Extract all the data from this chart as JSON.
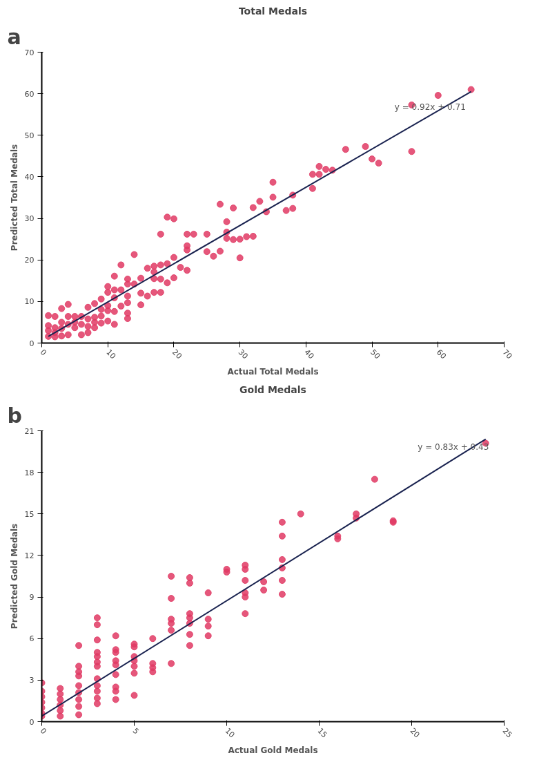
{
  "chart_data": [
    {
      "type": "scatter",
      "title": "Total Medals",
      "xlabel": "Actual Total Medals",
      "ylabel": "Predicted Total Medals",
      "xlim": [
        0,
        70
      ],
      "ylim": [
        0,
        70
      ],
      "xticks": [
        0,
        10,
        20,
        30,
        40,
        50,
        60,
        70
      ],
      "yticks": [
        0,
        10,
        20,
        30,
        40,
        50,
        60,
        70
      ],
      "grid": false,
      "annotations": [
        "a",
        "y = 0.92x + 0.71"
      ],
      "series": [
        {
          "marker": "circle",
          "color": "#e03a64",
          "x": [
            65,
            60,
            56,
            56,
            49,
            46,
            50,
            51,
            44,
            43,
            42,
            42,
            41,
            41,
            38,
            38,
            37,
            35,
            35,
            34,
            33,
            32,
            32,
            31,
            30,
            30,
            29,
            27,
            28,
            28,
            28,
            29,
            25,
            25,
            26,
            27,
            22,
            23,
            22,
            22,
            22,
            21,
            20,
            20,
            20,
            19,
            18,
            19,
            19,
            18,
            18,
            18,
            17,
            17,
            17,
            17,
            16,
            16,
            15,
            15,
            15,
            14,
            14,
            13,
            13,
            13,
            13,
            13,
            13,
            12,
            12,
            12,
            11,
            11,
            11,
            11,
            11,
            10,
            10,
            10,
            10,
            9,
            9,
            9,
            8,
            8,
            8,
            7,
            7,
            7,
            6,
            6,
            5,
            5,
            4,
            4,
            4,
            3,
            3,
            3,
            2,
            2,
            2,
            1,
            1,
            1,
            1,
            2,
            3,
            4,
            5,
            6,
            7,
            8,
            9,
            10
          ],
          "values": [
            61,
            59.6,
            57.3,
            46.1,
            47.3,
            46.6,
            44.3,
            43.3,
            41.6,
            41.8,
            42.5,
            40.6,
            40.6,
            37.2,
            35.6,
            32.4,
            31.9,
            38.7,
            35.1,
            31.6,
            34.1,
            32.6,
            25.7,
            25.6,
            25,
            20.5,
            32.5,
            33.4,
            29.2,
            26.7,
            25.2,
            24.9,
            26.2,
            22,
            20.9,
            22.1,
            26.2,
            26.2,
            23.4,
            22.4,
            17.5,
            18.2,
            20.6,
            15.7,
            29.9,
            30.3,
            26.2,
            19.1,
            14.5,
            18.8,
            15.4,
            12.2,
            18.5,
            17.1,
            15.5,
            12.2,
            18,
            11.3,
            15.6,
            12,
            9.2,
            21.3,
            14.2,
            15.4,
            14.2,
            11.3,
            9.7,
            7.2,
            5.9,
            18.8,
            12.8,
            8.9,
            16.1,
            12.8,
            10.9,
            7.6,
            4.5,
            13.6,
            12.2,
            7.8,
            5.3,
            10.6,
            8.1,
            4.8,
            9.5,
            6.2,
            3.7,
            8.6,
            5.8,
            2.5,
            2,
            6.4,
            6.4,
            3.7,
            9.3,
            6.4,
            2,
            8.3,
            5,
            1.7,
            6.4,
            3.7,
            1.5,
            6.6,
            4.2,
            1.6,
            3,
            2.5,
            3.5,
            4.5,
            5,
            4.5,
            4,
            5,
            6.5,
            9
          ]
        },
        {
          "type": "line",
          "color": "#1a2350",
          "x": [
            1,
            65
          ],
          "values": [
            1.6,
            60.5
          ]
        }
      ]
    },
    {
      "type": "scatter",
      "title": "Gold Medals",
      "xlabel": "Actual Gold Medals",
      "ylabel": "Predicted Gold Medals",
      "xlim": [
        0,
        25
      ],
      "ylim": [
        0,
        21
      ],
      "xticks": [
        0,
        5,
        10,
        15,
        20,
        25
      ],
      "yticks": [
        0,
        3,
        6,
        9,
        12,
        15,
        18,
        21
      ],
      "grid": false,
      "annotations": [
        "b",
        "y = 0.83x + 0.43"
      ],
      "series": [
        {
          "marker": "circle",
          "color": "#e03a64",
          "x": [
            0,
            0,
            0,
            0,
            0,
            0,
            0,
            1,
            1,
            1,
            1,
            1,
            1,
            2,
            2,
            2,
            2,
            2,
            2,
            2,
            2,
            2,
            3,
            3,
            3,
            3,
            3,
            3,
            3,
            3,
            3,
            3,
            3,
            3,
            4,
            4,
            4,
            4,
            4,
            4,
            4,
            4,
            4,
            5,
            5,
            5,
            5,
            5,
            5,
            5,
            6,
            6,
            6,
            6,
            7,
            7,
            7,
            7,
            7,
            7,
            8,
            8,
            8,
            8,
            8,
            8,
            8,
            9,
            9,
            9,
            9,
            10,
            10,
            11,
            11,
            11,
            11,
            11,
            11,
            12,
            12,
            13,
            13,
            13,
            13,
            13,
            13,
            14,
            16,
            16,
            17,
            17,
            18,
            19,
            19,
            24
          ],
          "values": [
            2.8,
            2.2,
            1.8,
            1.4,
            1.0,
            0.6,
            0.4,
            2.4,
            2.0,
            1.6,
            1.2,
            0.8,
            0.4,
            5.5,
            4.0,
            3.6,
            3.3,
            2.6,
            2.1,
            1.6,
            1.1,
            0.5,
            7.5,
            7.0,
            5.9,
            5.0,
            4.7,
            4.3,
            4.0,
            3.1,
            2.6,
            2.2,
            1.7,
            1.3,
            6.2,
            5.2,
            5.0,
            4.4,
            4.1,
            3.4,
            2.5,
            2.2,
            1.6,
            5.6,
            5.4,
            4.7,
            4.4,
            4.0,
            3.5,
            1.9,
            6.0,
            4.2,
            3.9,
            3.6,
            10.5,
            8.9,
            7.4,
            7.1,
            6.6,
            4.2,
            10.4,
            10.0,
            7.8,
            7.5,
            7.1,
            6.3,
            5.5,
            9.3,
            7.4,
            6.9,
            6.2,
            11.0,
            10.8,
            11.3,
            11.0,
            10.2,
            9.3,
            9.0,
            7.8,
            10.1,
            9.5,
            14.4,
            13.4,
            11.7,
            11.1,
            10.2,
            9.2,
            15.0,
            13.4,
            13.2,
            15.0,
            14.7,
            17.5,
            14.5,
            14.4,
            20.1
          ]
        },
        {
          "type": "line",
          "color": "#1a2350",
          "x": [
            0,
            24
          ],
          "values": [
            0.4,
            20.4
          ]
        }
      ]
    }
  ]
}
